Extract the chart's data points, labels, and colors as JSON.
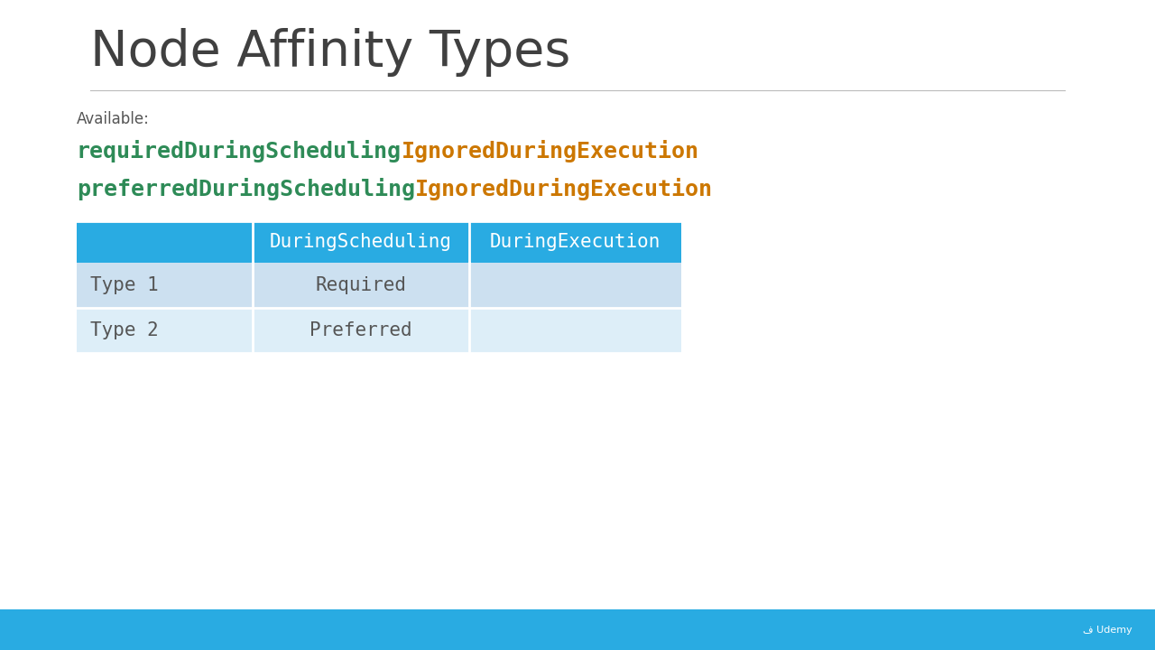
{
  "title": "Node Affinity Types",
  "available_label": "Available:",
  "segments_line1": [
    {
      "text": "requiredDuringScheduling",
      "color": "#2e8b57",
      "weight": "bold"
    },
    {
      "text": "IgnoredDuringExecution",
      "color": "#cc7700",
      "weight": "bold"
    }
  ],
  "segments_line2": [
    {
      "text": "preferredDuringScheduling",
      "color": "#2e8b57",
      "weight": "bold"
    },
    {
      "text": "IgnoredDuringExecution",
      "color": "#cc7700",
      "weight": "bold"
    }
  ],
  "table_header_bg": "#29abe2",
  "table_header_text_color": "#ffffff",
  "table_row1_bg": "#cce0f0",
  "table_row2_bg": "#ddeef8",
  "table_headers": [
    "",
    "DuringScheduling",
    "DuringExecution"
  ],
  "table_rows": [
    [
      "Type 1",
      "Required",
      ""
    ],
    [
      "Type 2",
      "Preferred",
      ""
    ]
  ],
  "footer_color": "#29abe2",
  "background_color": "#ffffff",
  "title_color": "#404040",
  "title_fontsize": 40,
  "mono_fontsize": 18,
  "table_header_fontsize": 15,
  "table_cell_fontsize": 15,
  "available_fontsize": 12
}
